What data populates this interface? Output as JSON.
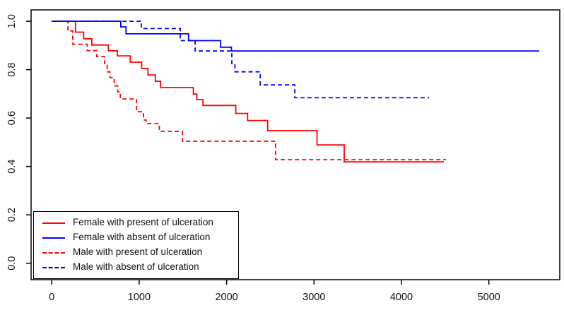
{
  "chart_data": {
    "type": "line",
    "subtype": "kaplan-meier-step",
    "title": "",
    "xlabel": "",
    "ylabel": "",
    "grid": false,
    "legend_position": "bottom-left",
    "xlim": [
      0,
      5815
    ],
    "ylim": [
      0,
      1
    ],
    "x_ticks": {
      "values": [
        0,
        1000,
        2000,
        3000,
        4000,
        5000
      ],
      "labels": [
        "0",
        "1000",
        "2000",
        "3000",
        "4000",
        "5000"
      ]
    },
    "y_ticks": {
      "values": [
        0.0,
        0.2,
        0.4,
        0.6,
        0.8,
        1.0
      ],
      "labels": [
        "0.0",
        "0.2",
        "0.4",
        "0.6",
        "0.8",
        "1.0"
      ]
    },
    "series": [
      {
        "id": "female-ulcer-present",
        "name": "Female with present of ulceration",
        "color": "#ff0000",
        "dashed": false,
        "start": [
          0,
          1.0
        ],
        "drops": [
          [
            272,
            0.955
          ],
          [
            365,
            0.928
          ],
          [
            458,
            0.902
          ],
          [
            648,
            0.878
          ],
          [
            750,
            0.857
          ],
          [
            898,
            0.831
          ],
          [
            1028,
            0.805
          ],
          [
            1100,
            0.778
          ],
          [
            1185,
            0.752
          ],
          [
            1245,
            0.726
          ],
          [
            1620,
            0.699
          ],
          [
            1660,
            0.676
          ],
          [
            1730,
            0.652
          ],
          [
            2105,
            0.619
          ],
          [
            2240,
            0.59
          ],
          [
            2470,
            0.548
          ],
          [
            3035,
            0.489
          ],
          [
            3345,
            0.419
          ]
        ],
        "end": 4485
      },
      {
        "id": "female-ulcer-absent",
        "name": "Female with absent of ulceration",
        "color": "#0000ff",
        "dashed": false,
        "start": [
          0,
          1.0
        ],
        "drops": [
          [
            790,
            0.977
          ],
          [
            850,
            0.948
          ],
          [
            1565,
            0.92
          ],
          [
            1930,
            0.893
          ],
          [
            2055,
            0.877
          ]
        ],
        "end": 5575
      },
      {
        "id": "male-ulcer-present",
        "name": "Male with present of ulceration",
        "color": "#ff0000",
        "dashed": true,
        "start": [
          0,
          1.0
        ],
        "drops": [
          [
            185,
            0.96
          ],
          [
            240,
            0.905
          ],
          [
            405,
            0.879
          ],
          [
            515,
            0.854
          ],
          [
            605,
            0.825
          ],
          [
            635,
            0.791
          ],
          [
            665,
            0.767
          ],
          [
            715,
            0.733
          ],
          [
            755,
            0.708
          ],
          [
            785,
            0.679
          ],
          [
            970,
            0.626
          ],
          [
            1050,
            0.592
          ],
          [
            1080,
            0.577
          ],
          [
            1230,
            0.545
          ],
          [
            1495,
            0.504
          ],
          [
            2560,
            0.428
          ]
        ],
        "end": 4510
      },
      {
        "id": "male-ulcer-absent",
        "name": "Male with absent of ulceration",
        "color": "#0000ff",
        "dashed": true,
        "start": [
          0,
          1.0
        ],
        "drops": [
          [
            1025,
            0.97
          ],
          [
            1470,
            0.92
          ],
          [
            1640,
            0.877
          ],
          [
            2060,
            0.825
          ],
          [
            2095,
            0.791
          ],
          [
            2385,
            0.737
          ],
          [
            2780,
            0.684
          ]
        ],
        "end": 4315
      }
    ]
  }
}
